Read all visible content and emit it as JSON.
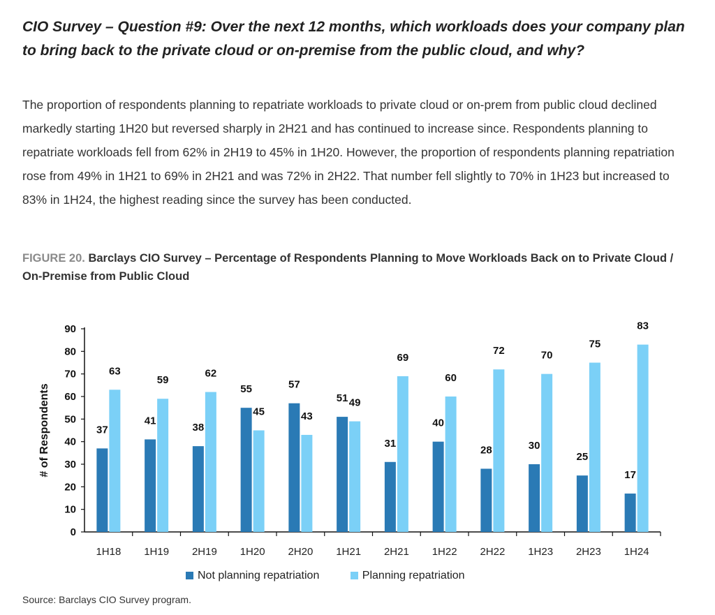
{
  "heading": "CIO Survey – Question #9: Over the next 12 months, which workloads does your company plan to bring back to the private cloud or on-premise from the public cloud, and why?",
  "body_text": "The proportion of respondents planning to repatriate workloads to private cloud or on-prem from public cloud declined markedly starting 1H20 but reversed sharply in 2H21 and has continued to increase since. Respondents planning to repatriate workloads fell from 62% in 2H19 to 45% in 1H20. However, the proportion of respondents planning repatriation rose from 49% in 1H21 to 69% in 2H21 and was 72% in 2H22. That number fell slightly to 70% in 1H23 but increased to 83% in 1H24, the highest reading since the survey has been conducted.",
  "figure": {
    "label": "FIGURE 20.",
    "title": "Barclays CIO Survey – Percentage of Respondents Planning to Move Workloads Back on to Private Cloud / On-Premise from Public Cloud"
  },
  "source": "Source: Barclays CIO Survey program.",
  "chart_data": {
    "type": "bar",
    "categories": [
      "1H18",
      "1H19",
      "2H19",
      "1H20",
      "2H20",
      "1H21",
      "2H21",
      "1H22",
      "2H22",
      "1H23",
      "2H23",
      "1H24"
    ],
    "series": [
      {
        "name": "Not planning repatriation",
        "color": "#2a7ab5",
        "values": [
          37,
          41,
          38,
          55,
          57,
          51,
          31,
          40,
          28,
          30,
          25,
          17
        ]
      },
      {
        "name": "Planning repatriation",
        "color": "#7bd0f7",
        "values": [
          63,
          59,
          62,
          45,
          43,
          49,
          69,
          60,
          72,
          70,
          75,
          83
        ]
      }
    ],
    "xlabel": "",
    "ylabel": "# of Respondents",
    "ylim": [
      0,
      90
    ],
    "yticks": [
      0,
      10,
      20,
      30,
      40,
      50,
      60,
      70,
      80,
      90
    ],
    "grid": false,
    "legend_position": "bottom"
  }
}
